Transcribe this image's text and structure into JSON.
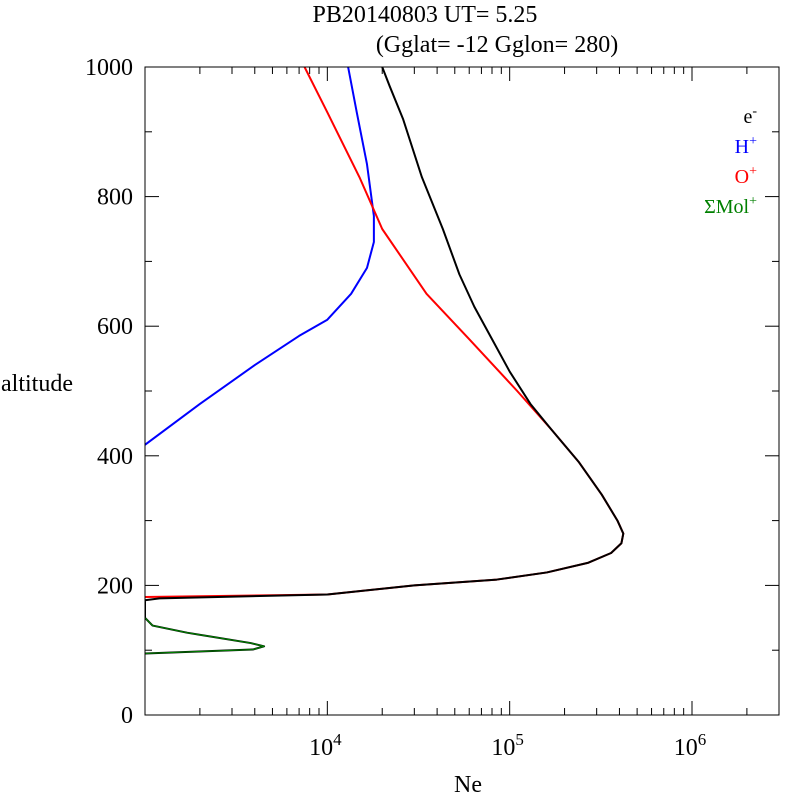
{
  "chart_data": {
    "type": "line",
    "title": "PB20140803   UT=  5.25",
    "subtitle": "(Gglat= -12   Gglon=  280)",
    "xlabel": "Ne",
    "ylabel": "altitude",
    "x_scale": "log",
    "xlim": [
      1000,
      3000000
    ],
    "ylim": [
      0,
      1000
    ],
    "x_ticks": [
      {
        "value": 10000,
        "base": "10",
        "exp": "4"
      },
      {
        "value": 100000,
        "base": "10",
        "exp": "5"
      },
      {
        "value": 1000000,
        "base": "10",
        "exp": "6"
      }
    ],
    "y_ticks": [
      "0",
      "200",
      "400",
      "600",
      "800",
      "1000"
    ],
    "grid": false,
    "legend_position": "top-right",
    "series": [
      {
        "name": "e-",
        "label_base": "e",
        "label_sup": "-",
        "color": "#000000",
        "points": [
          [
            1000,
            95
          ],
          [
            3900,
            101
          ],
          [
            4500,
            106
          ],
          [
            3800,
            111
          ],
          [
            1700,
            127
          ],
          [
            1100,
            138
          ],
          [
            1000,
            150
          ],
          [
            1000,
            177
          ],
          [
            1200,
            180
          ],
          [
            10000,
            186
          ],
          [
            30000,
            200
          ],
          [
            85000,
            209
          ],
          [
            160000,
            220
          ],
          [
            270000,
            235
          ],
          [
            360000,
            250
          ],
          [
            410000,
            265
          ],
          [
            420000,
            280
          ],
          [
            390000,
            300
          ],
          [
            320000,
            340
          ],
          [
            240000,
            390
          ],
          [
            170000,
            440
          ],
          [
            130000,
            480
          ],
          [
            100000,
            530
          ],
          [
            80000,
            580
          ],
          [
            64000,
            630
          ],
          [
            53000,
            680
          ],
          [
            43000,
            750
          ],
          [
            33000,
            830
          ],
          [
            26000,
            920
          ],
          [
            22000,
            970
          ],
          [
            20000,
            1000
          ]
        ]
      },
      {
        "name": "H+",
        "label_base": "H",
        "label_sup": "+",
        "color": "#0000ff",
        "points": [
          [
            1000,
            417
          ],
          [
            2000,
            480
          ],
          [
            4000,
            540
          ],
          [
            7000,
            585
          ],
          [
            10000,
            610
          ],
          [
            13500,
            650
          ],
          [
            16500,
            690
          ],
          [
            18000,
            730
          ],
          [
            18000,
            770
          ],
          [
            16500,
            850
          ],
          [
            14500,
            930
          ],
          [
            13000,
            1000
          ]
        ]
      },
      {
        "name": "O+",
        "label_base": "O",
        "label_sup": "+",
        "color": "#ff0000",
        "points": [
          [
            1000,
            182
          ],
          [
            10000,
            186
          ],
          [
            30000,
            200
          ],
          [
            85000,
            209
          ],
          [
            160000,
            220
          ],
          [
            270000,
            235
          ],
          [
            360000,
            250
          ],
          [
            410000,
            265
          ],
          [
            420000,
            280
          ],
          [
            390000,
            300
          ],
          [
            320000,
            340
          ],
          [
            240000,
            390
          ],
          [
            170000,
            440
          ],
          [
            110000,
            500
          ],
          [
            60000,
            580
          ],
          [
            35000,
            650
          ],
          [
            20000,
            750
          ],
          [
            15000,
            830
          ],
          [
            10000,
            930
          ],
          [
            7500,
            1000
          ]
        ]
      },
      {
        "name": "ΣMol+",
        "label_base": "ΣMol",
        "label_sup": "+",
        "color": "#008000",
        "points": [
          [
            1000,
            95
          ],
          [
            3900,
            101
          ],
          [
            4500,
            106
          ],
          [
            3800,
            111
          ],
          [
            1700,
            127
          ],
          [
            1100,
            138
          ],
          [
            1000,
            150
          ]
        ]
      }
    ]
  }
}
